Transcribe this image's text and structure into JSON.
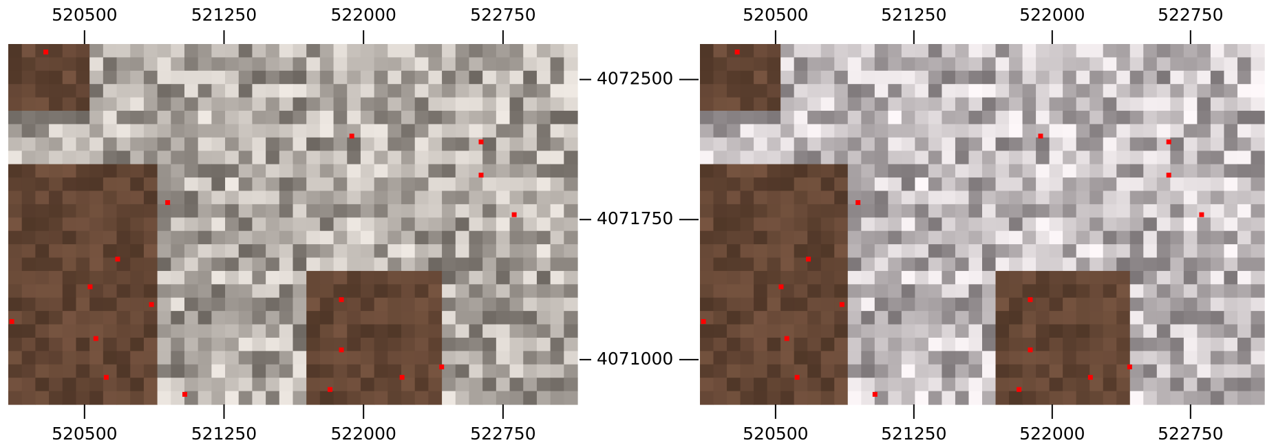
{
  "chart_data": [
    {
      "type": "scatter",
      "color": "#ff0000",
      "x": [
        520292,
        521937,
        522632,
        522632,
        520947,
        522810,
        520678,
        520530,
        520860,
        520109,
        521881,
        520561,
        521881,
        522420,
        520617,
        522207,
        521820,
        521039
      ],
      "y": [
        4072647,
        4072197,
        4072166,
        4071988,
        4071841,
        4071776,
        4071538,
        4071390,
        4071295,
        4071204,
        4071321,
        4071113,
        4071052,
        4070961,
        4070905,
        4070905,
        4070840,
        4070814
      ],
      "xlim": [
        520090,
        523150
      ],
      "ylim": [
        4070760,
        4072690
      ],
      "xticks": [
        520500,
        521250,
        522000,
        522750
      ],
      "yticks": [
        4071000,
        4071750,
        4072500
      ]
    },
    {
      "type": "scatter",
      "color": "#ff0000",
      "x": [
        520292,
        521937,
        522632,
        522632,
        520947,
        522810,
        520678,
        520530,
        520860,
        520109,
        521881,
        520561,
        521881,
        522420,
        520617,
        522207,
        521820,
        521039
      ],
      "y": [
        4072647,
        4072197,
        4072166,
        4071988,
        4071841,
        4071776,
        4071538,
        4071390,
        4071295,
        4071204,
        4071321,
        4071113,
        4071052,
        4070961,
        4070905,
        4070905,
        4070840,
        4070814
      ],
      "xlim": [
        520090,
        523150
      ],
      "ylim": [
        4070760,
        4072690
      ],
      "xticks": [
        520500,
        521250,
        522000,
        522750
      ],
      "yticks": [
        4071000,
        4071750,
        4072500
      ]
    }
  ]
}
